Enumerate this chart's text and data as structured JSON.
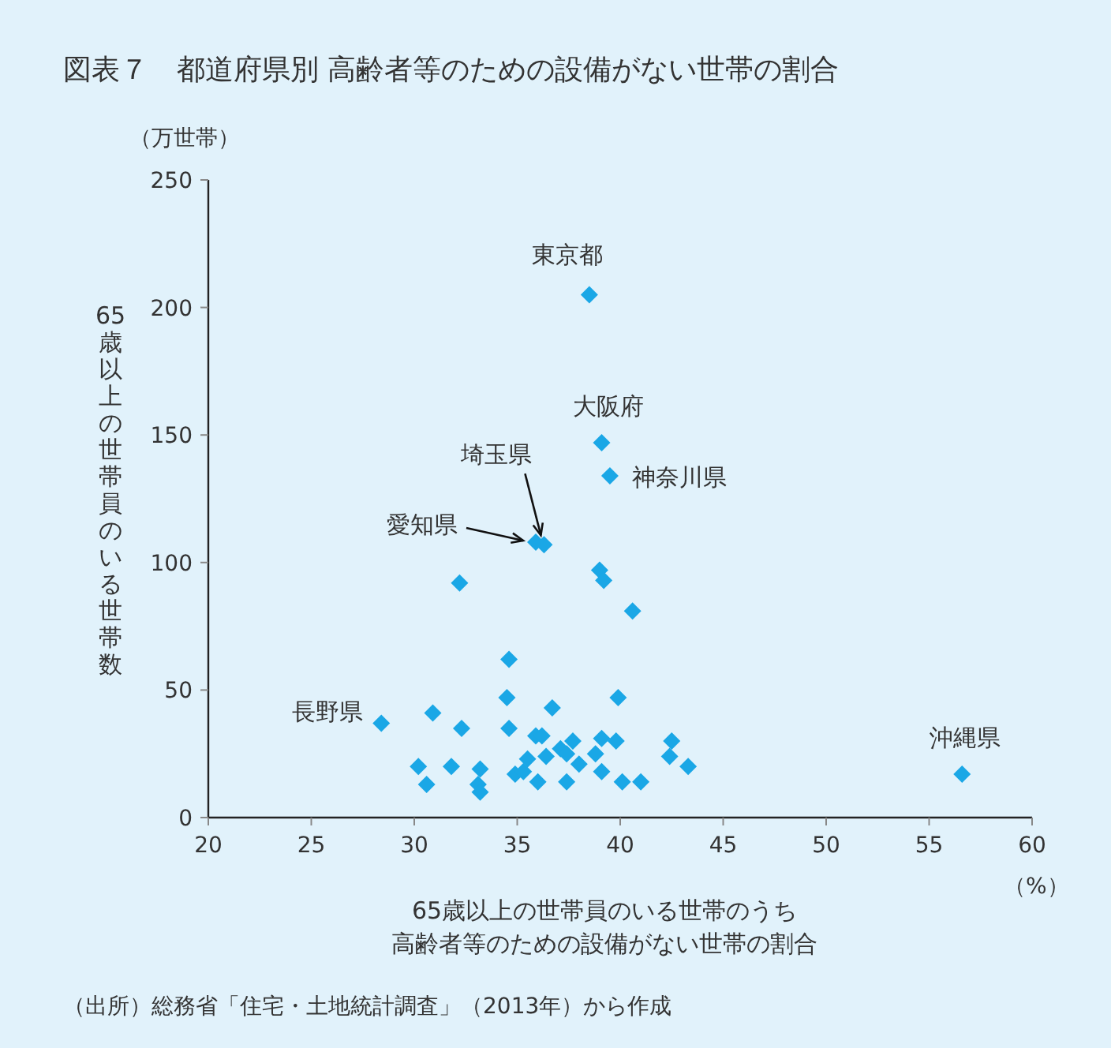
{
  "chart_data": {
    "type": "scatter",
    "title": "図表７　都道府県別 高齢者等のための設備がない世帯の割合",
    "xlabel": "65歳以上の世帯員のいる世帯のうち高齢者等のための設備がない世帯の割合",
    "ylabel": "65歳以上の世帯員のいる世帯数",
    "xlim": [
      20,
      60
    ],
    "xticks": [
      20,
      25,
      30,
      35,
      40,
      45,
      50,
      55,
      60
    ],
    "ylim": [
      0,
      250
    ],
    "yticks": [
      0,
      50,
      100,
      150,
      200,
      250
    ],
    "marker": "diamond",
    "grid": false,
    "series": [
      {
        "color": "#1aa7e6",
        "x": [
          28.4,
          30.9,
          32.3,
          30.2,
          30.6,
          31.8,
          33.2,
          33.1,
          33.2,
          34.6,
          34.5,
          34.6,
          34.9,
          35.3,
          35.5,
          35.9,
          36.2,
          36.4,
          36.0,
          36.7,
          37.1,
          37.4,
          37.7,
          38.0,
          37.4,
          38.8,
          39.1,
          39.1,
          39.9,
          39.8,
          40.1,
          41.0,
          40.6,
          42.4,
          42.5,
          43.3,
          32.2,
          39.0,
          39.2,
          38.5,
          39.1,
          39.5,
          36.3,
          35.9,
          56.6
        ],
        "values": [
          37,
          41,
          35,
          20,
          13,
          20,
          19,
          13,
          10,
          62,
          47,
          35,
          17,
          18,
          23,
          32,
          32,
          24,
          14,
          43,
          27,
          25,
          30,
          21,
          14,
          25,
          31,
          18,
          47,
          30,
          14,
          14,
          81,
          24,
          30,
          20,
          92,
          97,
          93,
          205,
          147,
          134,
          107,
          108,
          17
        ]
      }
    ],
    "annotations": [
      "（万世帯）",
      "（%）",
      "（出所）総務省「住宅・土地統計調査」（2013年）から作成",
      {
        "text": "東京都",
        "x": 38.5,
        "y": 205
      },
      {
        "text": "大阪府",
        "x": 39.1,
        "y": 147
      },
      {
        "text": "神奈川県",
        "x": 39.5,
        "y": 134
      },
      {
        "text": "埼玉県",
        "x": 36.3,
        "y": 107
      },
      {
        "text": "愛知県",
        "x": 35.9,
        "y": 108
      },
      {
        "text": "長野県",
        "x": 28.4,
        "y": 37
      },
      {
        "text": "沖縄県",
        "x": 56.6,
        "y": 17
      }
    ]
  }
}
